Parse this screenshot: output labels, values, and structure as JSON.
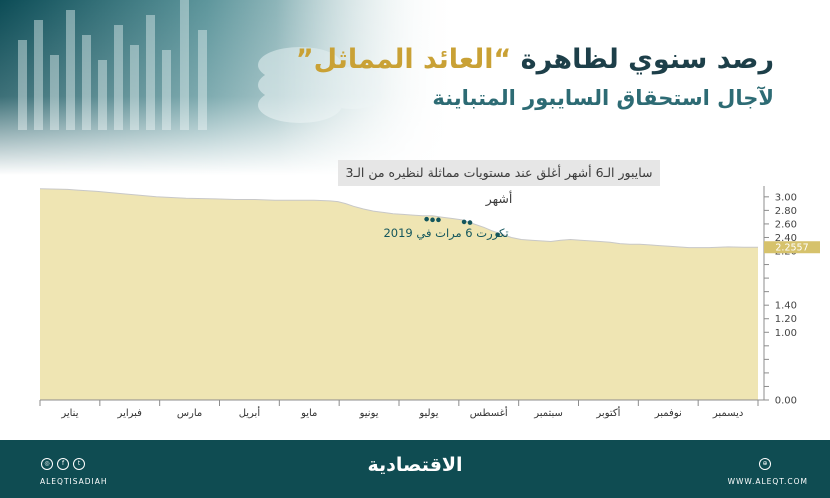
{
  "header": {
    "title_line1_start": "رصد سنوي لظاهرة ",
    "title_line1_accent": "“العائد المماثل”",
    "title_line2": "لآجال استحقاق السايبور المتباينة"
  },
  "chart_caption": "سايبور الـ6 أشهر أغلق عند مستويات مماثلة لنظيره من الـ3 أشهر",
  "footer": {
    "brand": "الاقتصادية",
    "handle": "ALEQTISADIAH",
    "website": "WWW.ALEQT.COM",
    "icons": [
      "twitter-icon",
      "facebook-icon",
      "instagram-icon",
      "globe-icon"
    ]
  },
  "colors": {
    "area_fill": "#efe5b3",
    "line": "#c8c8c8",
    "marker": "#14565c",
    "last_value_bg": "#d6c26c",
    "footer_bg": "#0f4c52",
    "title": "#1d3f49",
    "accent": "#c9a135"
  },
  "chart_data": {
    "type": "area",
    "annotation": "تكررت 6 مرات في 2019",
    "last_value_label": "2.2557",
    "months": [
      "يناير",
      "فبراير",
      "مارس",
      "أبريل",
      "مايو",
      "يونيو",
      "يوليو",
      "أغسطس",
      "سبتمبر",
      "أكتوبر",
      "نوفمبر",
      "ديسمبر"
    ],
    "y_ticks": [
      "0.00",
      "0.20",
      "0.40",
      "0.60",
      "0.80",
      "1.00",
      "1.20",
      "1.40",
      "1.60",
      "1.80",
      "2.00",
      "2.20",
      "2.40",
      "2.60",
      "2.80",
      "3.00"
    ],
    "y_labels_shown": [
      "0.00",
      "1.00",
      "1.20",
      "1.40",
      "2.20",
      "2.40",
      "2.60",
      "2.80",
      "3.00"
    ],
    "ylim": [
      0,
      3.16
    ],
    "grid": false,
    "x_unit": "day of year",
    "x": [
      1,
      15,
      20,
      30,
      45,
      60,
      75,
      90,
      100,
      110,
      120,
      130,
      140,
      148,
      152,
      156,
      160,
      165,
      170,
      175,
      180,
      185,
      190,
      195,
      200,
      205,
      210,
      215,
      218,
      222,
      226,
      230,
      235,
      240,
      245,
      250,
      255,
      260,
      265,
      270,
      275,
      280,
      285,
      290,
      295,
      300,
      305,
      310,
      315,
      320,
      330,
      340,
      350,
      358,
      365
    ],
    "y": [
      3.12,
      3.11,
      3.1,
      3.08,
      3.04,
      3.0,
      2.98,
      2.97,
      2.96,
      2.96,
      2.95,
      2.95,
      2.95,
      2.94,
      2.93,
      2.9,
      2.86,
      2.82,
      2.79,
      2.77,
      2.75,
      2.74,
      2.73,
      2.72,
      2.72,
      2.7,
      2.68,
      2.66,
      2.63,
      2.59,
      2.55,
      2.5,
      2.45,
      2.4,
      2.37,
      2.36,
      2.35,
      2.34,
      2.36,
      2.37,
      2.36,
      2.35,
      2.34,
      2.33,
      2.31,
      2.3,
      2.3,
      2.29,
      2.28,
      2.27,
      2.25,
      2.25,
      2.26,
      2.2557,
      2.2557
    ],
    "markers_x": [
      197,
      200,
      203,
      216,
      219,
      233
    ],
    "markers_y": [
      2.67,
      2.66,
      2.66,
      2.63,
      2.62,
      2.44
    ]
  }
}
